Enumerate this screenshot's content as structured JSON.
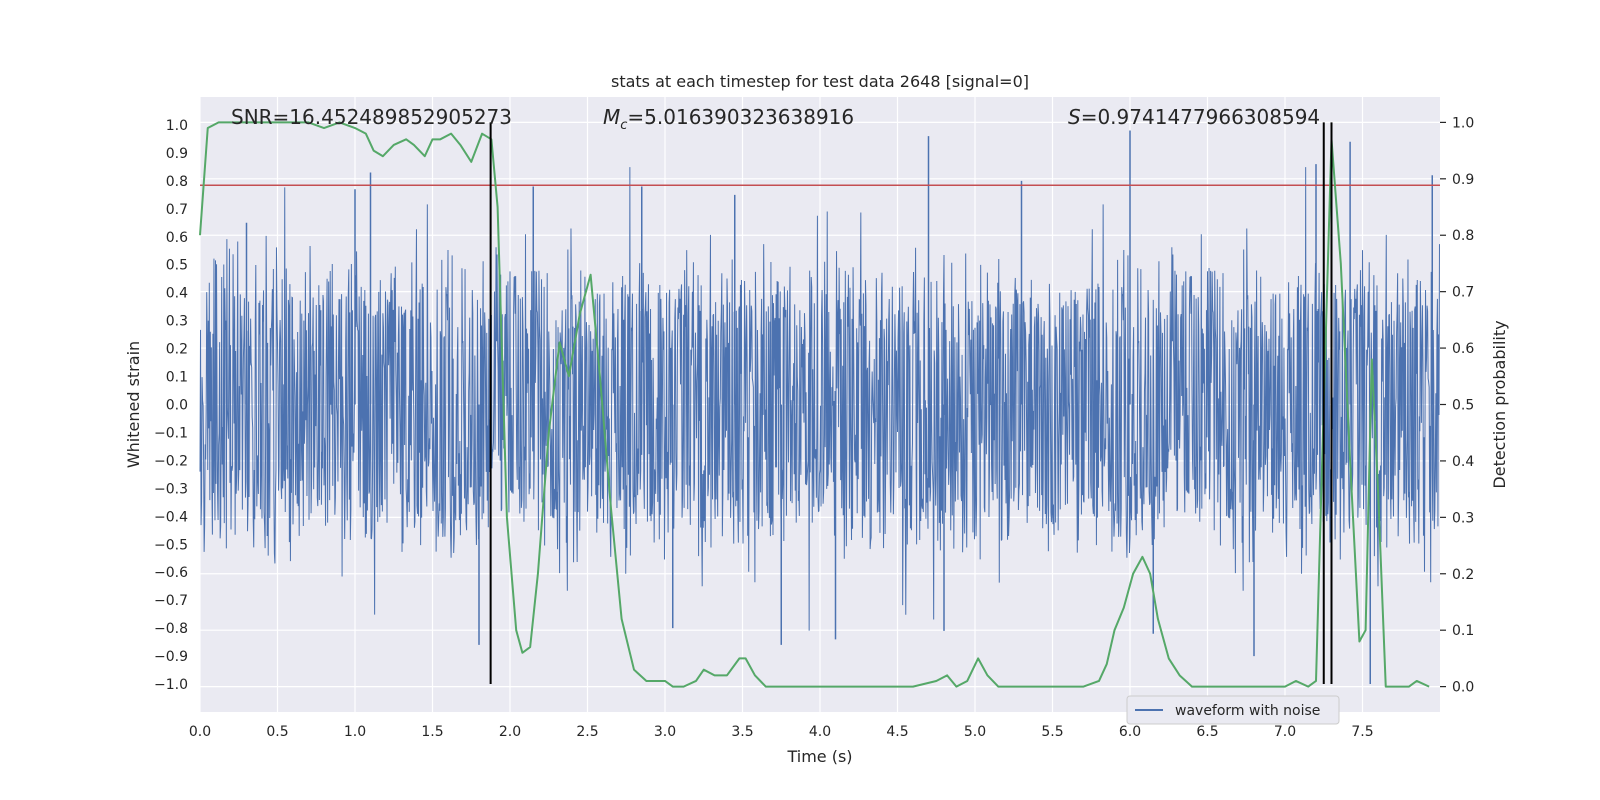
{
  "chart_data": {
    "type": "line",
    "title": "stats at each timestep for test data 2648 [signal=0]",
    "xlabel": "Time (s)",
    "ylabel": "Whitened strain",
    "y2label": "Detection probability",
    "xlim": [
      0.0,
      8.0
    ],
    "ylim": [
      -1.1,
      1.1
    ],
    "y2lim": [
      -0.045,
      1.045
    ],
    "x_ticks": [
      0.0,
      0.5,
      1.0,
      1.5,
      2.0,
      2.5,
      3.0,
      3.5,
      4.0,
      4.5,
      5.0,
      5.5,
      6.0,
      6.5,
      7.0,
      7.5
    ],
    "x_tick_labels": [
      "0.0",
      "0.5",
      "1.0",
      "1.5",
      "2.0",
      "2.5",
      "3.0",
      "3.5",
      "4.0",
      "4.5",
      "5.0",
      "5.5",
      "6.0",
      "6.5",
      "7.0",
      "7.5"
    ],
    "y_ticks": [
      -1.0,
      -0.9,
      -0.8,
      -0.7,
      -0.6,
      -0.5,
      -0.4,
      -0.3,
      -0.2,
      -0.1,
      0.0,
      0.1,
      0.2,
      0.3,
      0.4,
      0.5,
      0.6,
      0.7,
      0.8,
      0.9,
      1.0
    ],
    "y_tick_labels": [
      "−1.0",
      "−0.9",
      "−0.8",
      "−0.7",
      "−0.6",
      "−0.5",
      "−0.4",
      "−0.3",
      "−0.2",
      "−0.1",
      "0.0",
      "0.1",
      "0.2",
      "0.3",
      "0.4",
      "0.5",
      "0.6",
      "0.7",
      "0.8",
      "0.9",
      "1.0"
    ],
    "y2_ticks": [
      0.0,
      0.1,
      0.2,
      0.3,
      0.4,
      0.5,
      0.6,
      0.7,
      0.8,
      0.9,
      1.0
    ],
    "y2_tick_labels": [
      "0.0",
      "0.1",
      "0.2",
      "0.3",
      "0.4",
      "0.5",
      "0.6",
      "0.7",
      "0.8",
      "0.9",
      "1.0"
    ],
    "grid": true,
    "legend_position": "lower-right",
    "annotations": [
      {
        "text": "SNR=16.452489852905273",
        "x": 0.2
      },
      {
        "text": "=5.016390323638916",
        "math_prefix": "M",
        "math_sub": "c",
        "x": 2.6
      },
      {
        "text": "=0.9741477966308594",
        "math_prefix": "S",
        "x": 5.6
      }
    ],
    "series": [
      {
        "name": "waveform with noise",
        "color": "#4c72b0",
        "axis": "left",
        "style": "noise",
        "duration_s": 8.0,
        "typical_amplitude": 0.45,
        "peak_spikes": [
          [
            1.1,
            0.83
          ],
          [
            1.0,
            0.77
          ],
          [
            0.3,
            0.65
          ],
          [
            1.8,
            -0.86
          ],
          [
            2.15,
            0.78
          ],
          [
            2.85,
            0.78
          ],
          [
            3.45,
            0.75
          ],
          [
            3.05,
            -0.8
          ],
          [
            3.75,
            -0.86
          ],
          [
            4.1,
            -0.84
          ],
          [
            4.7,
            0.96
          ],
          [
            4.8,
            -0.81
          ],
          [
            5.3,
            0.8
          ],
          [
            6.0,
            0.98
          ],
          [
            6.15,
            -0.82
          ],
          [
            6.8,
            -0.9
          ],
          [
            7.2,
            0.86
          ],
          [
            7.42,
            0.94
          ],
          [
            7.55,
            -1.0
          ],
          [
            7.95,
            0.82
          ]
        ]
      },
      {
        "name": "",
        "color": "#55a868",
        "axis": "right",
        "style": "line",
        "x": [
          0.0,
          0.05,
          0.12,
          0.2,
          0.3,
          0.4,
          0.5,
          0.6,
          0.7,
          0.8,
          0.9,
          1.0,
          1.07,
          1.12,
          1.18,
          1.25,
          1.33,
          1.38,
          1.45,
          1.5,
          1.55,
          1.62,
          1.68,
          1.75,
          1.82,
          1.88,
          1.92,
          1.98,
          2.04,
          2.08,
          2.13,
          2.18,
          2.25,
          2.32,
          2.38,
          2.45,
          2.52,
          2.58,
          2.65,
          2.72,
          2.8,
          2.88,
          2.95,
          3.0,
          3.05,
          3.12,
          3.2,
          3.25,
          3.32,
          3.4,
          3.48,
          3.52,
          3.58,
          3.65,
          3.72,
          3.8,
          3.88,
          3.95,
          4.05,
          4.2,
          4.4,
          4.6,
          4.75,
          4.82,
          4.88,
          4.95,
          5.02,
          5.08,
          5.15,
          5.2,
          5.3,
          5.5,
          5.7,
          5.8,
          5.85,
          5.9,
          5.96,
          6.02,
          6.08,
          6.13,
          6.18,
          6.25,
          6.32,
          6.4,
          6.48,
          6.6,
          6.8,
          6.9,
          7.0,
          7.07,
          7.15,
          7.2,
          7.25,
          7.3,
          7.36,
          7.42,
          7.48,
          7.52,
          7.56,
          7.6,
          7.65,
          7.72,
          7.8,
          7.85,
          7.93
        ],
        "y": [
          0.8,
          0.99,
          1.0,
          1.0,
          1.0,
          1.0,
          1.0,
          1.0,
          1.0,
          0.99,
          1.0,
          0.99,
          0.98,
          0.95,
          0.94,
          0.96,
          0.97,
          0.96,
          0.94,
          0.97,
          0.97,
          0.98,
          0.96,
          0.93,
          0.98,
          0.97,
          0.85,
          0.3,
          0.1,
          0.06,
          0.07,
          0.2,
          0.45,
          0.61,
          0.55,
          0.66,
          0.73,
          0.55,
          0.32,
          0.12,
          0.03,
          0.01,
          0.01,
          0.01,
          0.0,
          0.0,
          0.01,
          0.03,
          0.02,
          0.02,
          0.05,
          0.05,
          0.02,
          0.0,
          0.0,
          0.0,
          0.0,
          0.0,
          0.0,
          0.0,
          0.0,
          0.0,
          0.01,
          0.02,
          0.0,
          0.01,
          0.05,
          0.02,
          0.0,
          0.0,
          0.0,
          0.0,
          0.0,
          0.01,
          0.04,
          0.1,
          0.14,
          0.2,
          0.23,
          0.2,
          0.12,
          0.05,
          0.02,
          0.0,
          0.0,
          0.0,
          0.0,
          0.0,
          0.0,
          0.01,
          0.0,
          0.01,
          0.5,
          0.97,
          0.75,
          0.4,
          0.08,
          0.1,
          0.58,
          0.35,
          0.0,
          0.0,
          0.0,
          0.01,
          0.0
        ]
      },
      {
        "name": "",
        "color": "#c44e52",
        "axis": "left",
        "style": "hline",
        "y": 0.7845
      }
    ],
    "vertical_markers": [
      {
        "x": 1.875,
        "y_top": 1.0,
        "color": "#000000"
      },
      {
        "x": 7.25,
        "y_top": 1.0,
        "color": "#000000"
      },
      {
        "x": 7.3,
        "y_top": 1.0,
        "color": "#000000"
      }
    ],
    "style_colors": {
      "plot_background": "#eaeaf2",
      "grid": "#ffffff",
      "text": "#262626"
    }
  }
}
